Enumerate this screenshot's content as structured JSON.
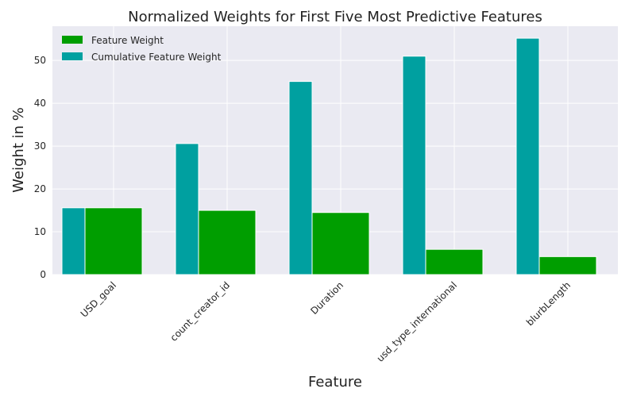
{
  "chart_data": {
    "type": "bar",
    "title": "Normalized Weights for First Five Most Predictive Features",
    "xlabel": "Feature",
    "ylabel": "Weight in %",
    "categories": [
      "USD_goal",
      "count_creator_id",
      "Duration",
      "usd_type_international",
      "blurbLength"
    ],
    "series": [
      {
        "name": "Feature Weight",
        "color": "#009e00",
        "values": [
          15.6,
          15.0,
          14.5,
          5.9,
          4.2
        ]
      },
      {
        "name": "Cumulative Feature Weight",
        "color": "#00a0a0",
        "values": [
          15.6,
          30.6,
          45.1,
          51.0,
          55.2
        ]
      }
    ],
    "ylim": [
      0,
      58
    ],
    "yticks": [
      0,
      10,
      20,
      30,
      40,
      50
    ],
    "grid": true,
    "legend_position": "top-left",
    "background": "#eaeaf2"
  }
}
